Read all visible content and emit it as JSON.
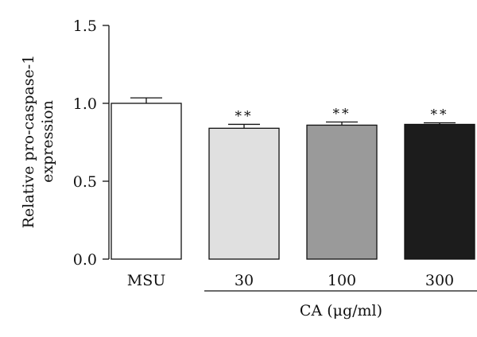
{
  "chart_data": {
    "type": "bar",
    "categories": [
      "MSU",
      "30",
      "100",
      "300"
    ],
    "values": [
      1.0,
      0.84,
      0.86,
      0.865
    ],
    "errors": [
      0.035,
      0.025,
      0.02,
      0.01
    ],
    "significance": [
      "",
      "**",
      "**",
      "**"
    ],
    "bar_colors": [
      "#ffffff",
      "#e0e0e0",
      "#9a9a9a",
      "#1c1c1c"
    ],
    "ylabel_lines": [
      "Relative pro-caspase-1",
      "expression"
    ],
    "ylim": [
      0,
      1.5
    ],
    "yticks": [
      0.0,
      0.5,
      1.0,
      1.5
    ],
    "ytick_labels": [
      "0.0",
      "0.5",
      "1.0",
      "1.5"
    ],
    "group_label": "CA (μg/ml)",
    "group_span": [
      "30",
      "300"
    ],
    "grid": false,
    "legend": false
  }
}
